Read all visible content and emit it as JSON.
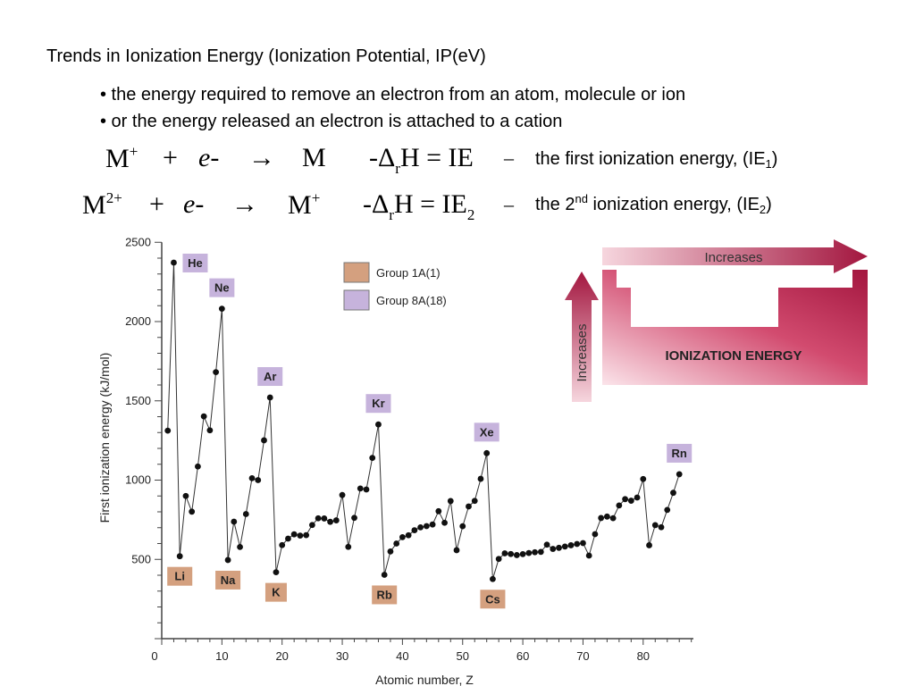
{
  "slide": {
    "title": "Trends in Ionization Energy (Ionization Potential, IP(eV)",
    "bullets": [
      "• the energy required to remove an electron from an atom, molecule or ion",
      "• or the energy released an electron is attached to a cation"
    ],
    "eq1": {
      "lhs": "M",
      "lhs_sup": "+",
      "plus": "+",
      "e": "e",
      "dash": "-",
      "arrow": "→",
      "rhs": "M",
      "dh": "-Δ",
      "dh_sub": "r",
      "h": "H = IE",
      "tail": "–",
      "note_pre": "the first ionization energy, (IE",
      "note_sub": "1",
      "note_post": ")"
    },
    "eq2": {
      "lhs": "M",
      "lhs_sup": "2+",
      "plus": "+",
      "e": "e",
      "dash": "-",
      "arrow": "→",
      "rhs": "M",
      "rhs_sup": "+",
      "dh": "-Δ",
      "dh_sub": "r",
      "h": "H = IE",
      "ie_sub": "2",
      "tail": "–",
      "note_pre": "the 2",
      "note_sup": "nd",
      "note_mid": " ionization energy, (IE",
      "note_sub": "2",
      "note_post": ")"
    }
  },
  "trend_graphic": {
    "top_arrow_label": "Increases",
    "side_arrow_label": "Increases",
    "table_label": "IONIZATION ENERGY",
    "color": "#a3163f"
  },
  "legend": [
    {
      "label": "Group 1A(1)",
      "color": "#d4a07f"
    },
    {
      "label": "Group 8A(18)",
      "color": "#c6b3dc"
    }
  ],
  "chart_data": {
    "type": "line",
    "xlabel": "Atomic number, Z",
    "ylabel": "First ionization energy (kJ/mol)",
    "xlim": [
      0,
      86
    ],
    "ylim": [
      0,
      2500
    ],
    "xticks": [
      0,
      10,
      20,
      30,
      40,
      50,
      60,
      70,
      80
    ],
    "yticks": [
      500,
      1000,
      1500,
      2000,
      2500
    ],
    "series": [
      {
        "x": [
          1,
          2,
          3,
          4,
          5,
          6,
          7,
          8,
          9,
          10,
          11,
          12,
          13,
          14,
          15,
          16,
          17,
          18,
          19,
          20,
          21,
          22,
          23,
          24,
          25,
          26,
          27,
          28,
          29,
          30,
          31,
          32,
          33,
          34,
          35,
          36,
          37,
          38,
          39,
          40,
          41,
          42,
          43,
          44,
          45,
          46,
          47,
          48,
          49,
          50,
          51,
          52,
          53,
          54,
          55,
          56,
          57,
          58,
          59,
          60,
          61,
          62,
          63,
          64,
          65,
          66,
          67,
          68,
          69,
          70,
          71,
          72,
          73,
          74,
          75,
          76,
          77,
          78,
          79,
          80,
          81,
          82,
          83,
          84,
          85,
          86
        ],
        "values": [
          1312,
          2372,
          520,
          900,
          801,
          1086,
          1402,
          1314,
          1681,
          2081,
          496,
          738,
          578,
          786,
          1012,
          1000,
          1251,
          1521,
          419,
          590,
          631,
          658,
          650,
          653,
          717,
          759,
          758,
          737,
          746,
          906,
          579,
          762,
          947,
          941,
          1140,
          1351,
          403,
          550,
          600,
          640,
          652,
          684,
          702,
          710,
          720,
          804,
          731,
          868,
          558,
          709,
          834,
          869,
          1008,
          1170,
          376,
          503,
          538,
          534,
          527,
          533,
          540,
          545,
          547,
          593,
          566,
          573,
          581,
          589,
          597,
          603,
          524,
          659,
          761,
          770,
          760,
          840,
          880,
          870,
          890,
          1007,
          589,
          716,
          703,
          812,
          920,
          1037
        ]
      }
    ],
    "group_1a_labels": [
      {
        "label": "Li",
        "z": 3
      },
      {
        "label": "Na",
        "z": 11
      },
      {
        "label": "K",
        "z": 19
      },
      {
        "label": "Rb",
        "z": 37
      },
      {
        "label": "Cs",
        "z": 55
      }
    ],
    "group_8a_labels": [
      {
        "label": "He",
        "z": 2
      },
      {
        "label": "Ne",
        "z": 10
      },
      {
        "label": "Ar",
        "z": 18
      },
      {
        "label": "Kr",
        "z": 36
      },
      {
        "label": "Xe",
        "z": 54
      },
      {
        "label": "Rn",
        "z": 86
      }
    ]
  }
}
